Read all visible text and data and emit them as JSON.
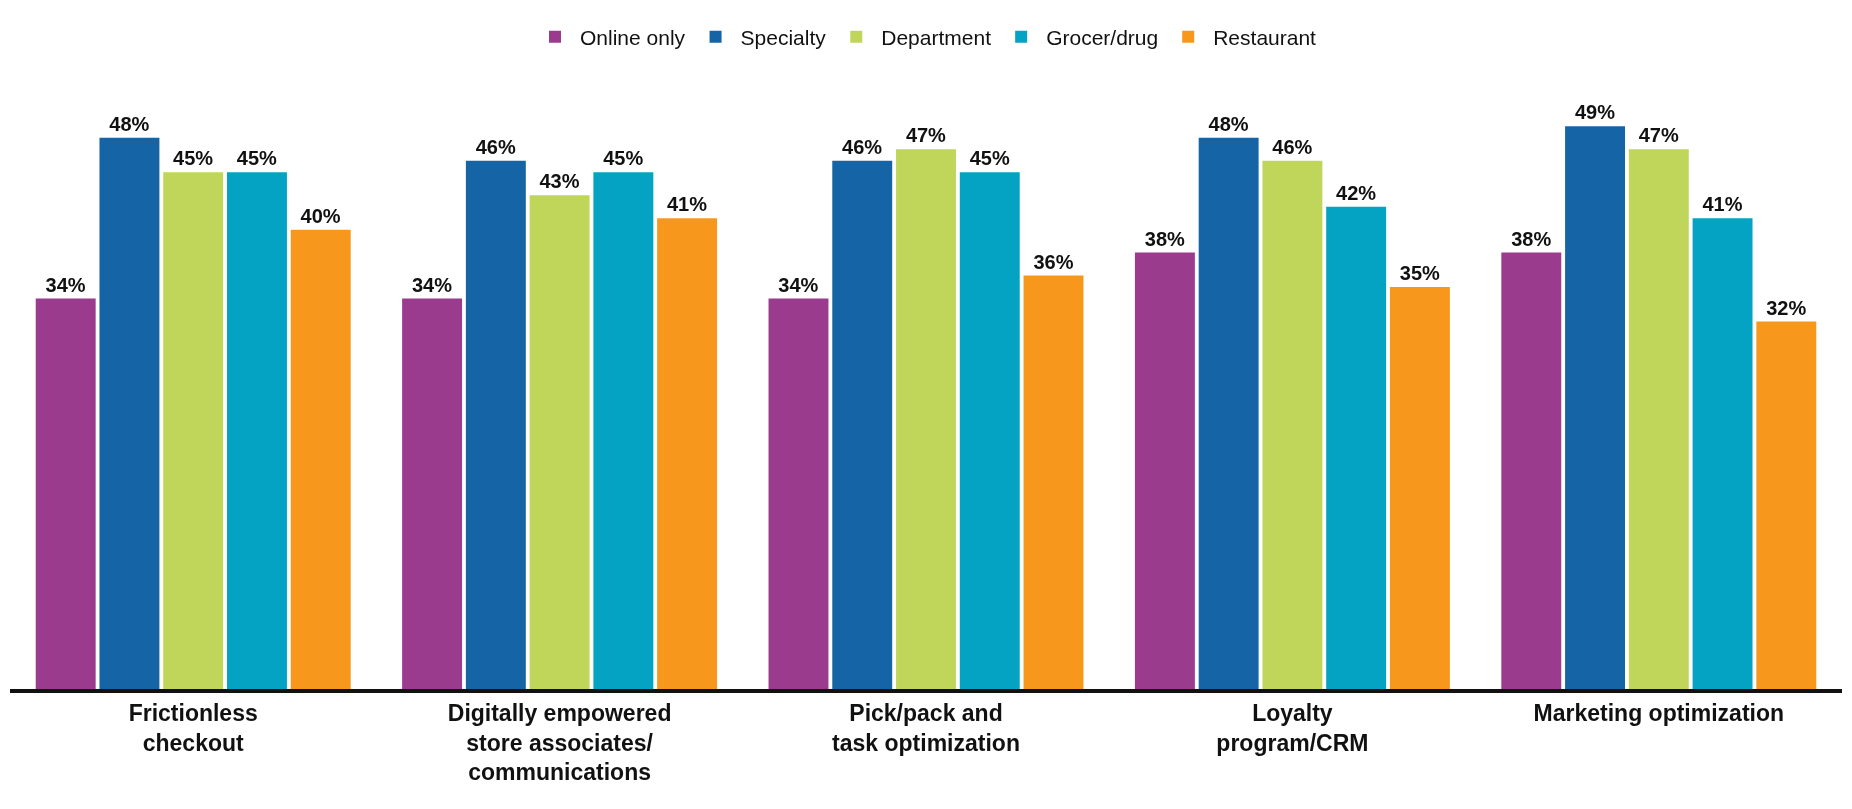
{
  "chart_data": {
    "type": "bar",
    "categories": [
      "Frictionless\ncheckout",
      "Digitally empowered\nstore associates/\ncommunications",
      "Pick/pack and\ntask optimization",
      "Loyalty\nprogram/CRM",
      "Marketing optimization"
    ],
    "series": [
      {
        "name": "Online only",
        "color": "#9b3b8e",
        "values": [
          34,
          34,
          34,
          38,
          38
        ],
        "value_labels": [
          "34%",
          "34%",
          "34%",
          "38%",
          "38%"
        ]
      },
      {
        "name": "Specialty",
        "color": "#1565a6",
        "values": [
          48,
          46,
          46,
          48,
          49
        ],
        "value_labels": [
          "48%",
          "46%",
          "46%",
          "48%",
          "49%"
        ]
      },
      {
        "name": "Department",
        "color": "#bfd65a",
        "values": [
          45,
          43,
          47,
          46,
          47
        ],
        "value_labels": [
          "45%",
          "43%",
          "47%",
          "46%",
          "47%"
        ]
      },
      {
        "name": "Grocer/drug",
        "color": "#04a3c3",
        "values": [
          45,
          45,
          45,
          42,
          41
        ],
        "value_labels": [
          "45%",
          "45%",
          "45%",
          "42%",
          "41%"
        ]
      },
      {
        "name": "Restaurant",
        "color": "#f7981d",
        "values": [
          40,
          41,
          36,
          35,
          32
        ],
        "value_labels": [
          "40%",
          "41%",
          "36%",
          "35%",
          "32%"
        ]
      }
    ],
    "legend": "top",
    "tick_labels": "x"
  }
}
